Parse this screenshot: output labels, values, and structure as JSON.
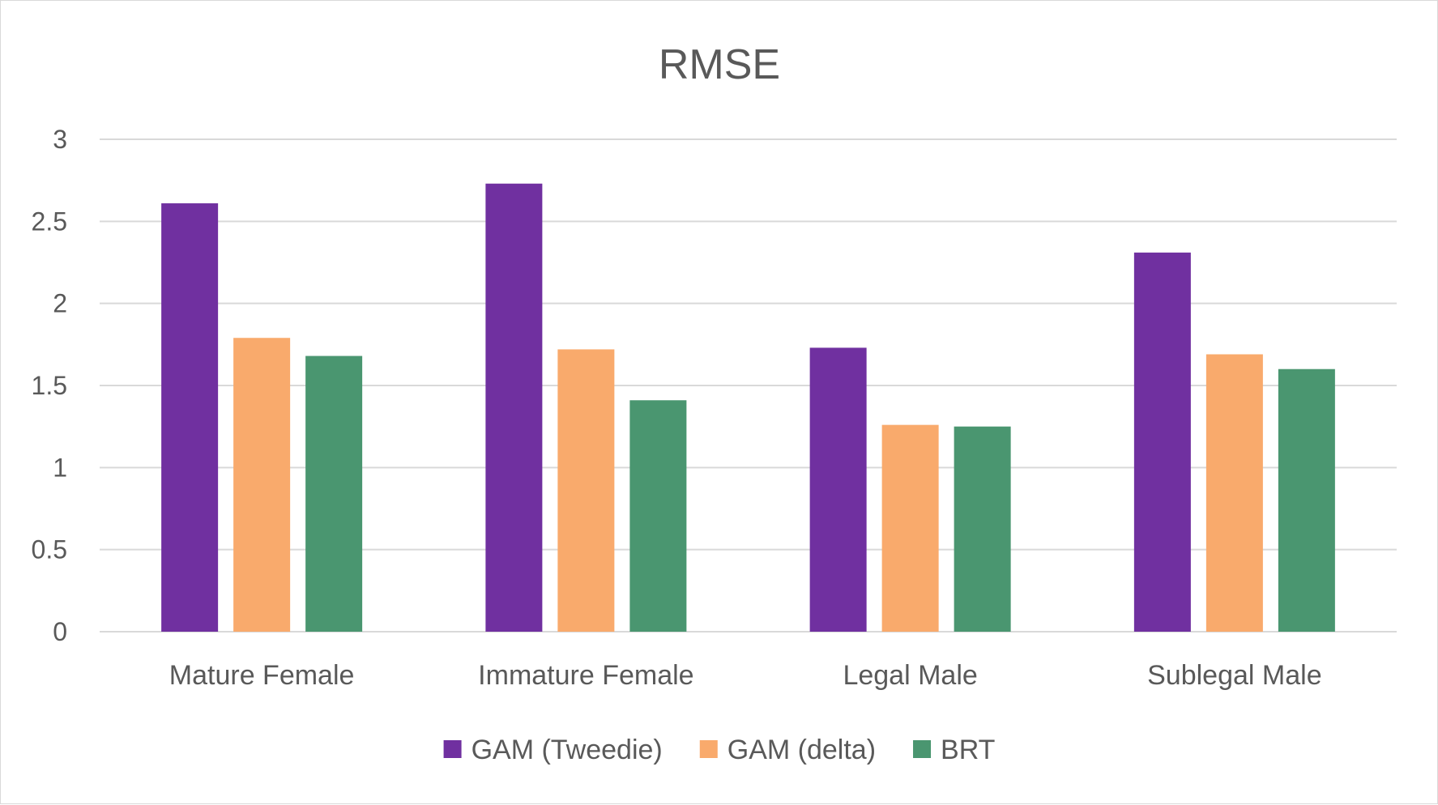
{
  "chart_data": {
    "type": "bar",
    "title": "RMSE",
    "xlabel": "",
    "ylabel": "",
    "categories": [
      "Mature Female",
      "Immature Female",
      "Legal Male",
      "Sublegal Male"
    ],
    "series": [
      {
        "name": "GAM (Tweedie)",
        "color": "#7030a0",
        "values": [
          2.61,
          2.73,
          1.73,
          2.31
        ]
      },
      {
        "name": "GAM (delta)",
        "color": "#f9aa6c",
        "values": [
          1.79,
          1.72,
          1.26,
          1.69
        ]
      },
      {
        "name": "BRT",
        "color": "#4a9670",
        "values": [
          1.68,
          1.41,
          1.25,
          1.6
        ]
      }
    ],
    "ylim": [
      0,
      3
    ],
    "yticks": [
      "0",
      "0.5",
      "1",
      "1.5",
      "2",
      "2.5",
      "3"
    ],
    "grid": true,
    "legend_position": "bottom"
  }
}
